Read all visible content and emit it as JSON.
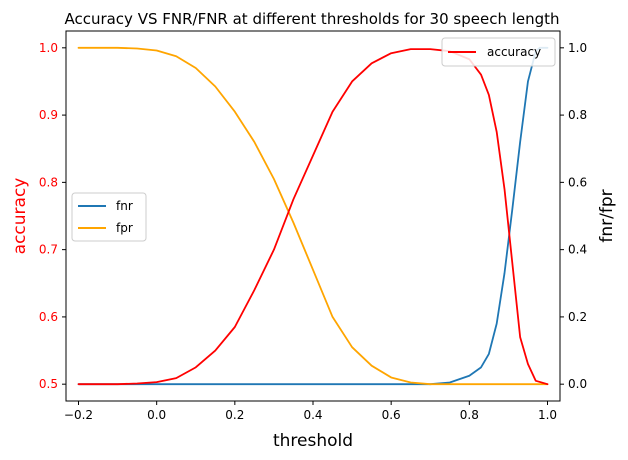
{
  "chart_data": {
    "type": "line",
    "title": "Accuracy VS FNR/FNR at different thresholds for 30 speech length",
    "xlabel": "threshold",
    "ylabel_left": "accuracy",
    "ylabel_right": "fnr/fpr",
    "xlim": [
      -0.232,
      1.032
    ],
    "ylim_left": [
      0.475,
      1.025
    ],
    "ylim_right": [
      -0.05,
      1.05
    ],
    "xticks": [
      -0.2,
      0.0,
      0.2,
      0.4,
      0.6,
      0.8,
      1.0
    ],
    "xtick_labels": [
      "−0.2",
      "0.0",
      "0.2",
      "0.4",
      "0.6",
      "0.8",
      "1.0"
    ],
    "yticks_left": [
      0.5,
      0.6,
      0.7,
      0.8,
      0.9,
      1.0
    ],
    "ytick_labels_left": [
      "0.5",
      "0.6",
      "0.7",
      "0.8",
      "0.9",
      "1.0"
    ],
    "yticks_right": [
      0.0,
      0.2,
      0.4,
      0.6,
      0.8,
      1.0
    ],
    "ytick_labels_right": [
      "0.0",
      "0.2",
      "0.4",
      "0.6",
      "0.8",
      "1.0"
    ],
    "grid": false,
    "legend_left": {
      "placement": "center-left",
      "entries": [
        "fnr",
        "fpr"
      ]
    },
    "legend_right": {
      "placement": "top-right",
      "entries": [
        "accuracy"
      ]
    },
    "colors": {
      "accuracy": "#ff0000",
      "fnr": "#1f77b4",
      "fpr": "#ffa500",
      "left_axis": "#ff0000"
    },
    "series": [
      {
        "name": "accuracy",
        "axis": "left",
        "points": [
          [
            -0.2,
            0.5
          ],
          [
            -0.1,
            0.5
          ],
          [
            -0.05,
            0.501
          ],
          [
            0.0,
            0.503
          ],
          [
            0.05,
            0.509
          ],
          [
            0.1,
            0.525
          ],
          [
            0.15,
            0.55
          ],
          [
            0.2,
            0.585
          ],
          [
            0.25,
            0.64
          ],
          [
            0.3,
            0.7
          ],
          [
            0.35,
            0.775
          ],
          [
            0.4,
            0.84
          ],
          [
            0.45,
            0.905
          ],
          [
            0.5,
            0.95
          ],
          [
            0.55,
            0.977
          ],
          [
            0.6,
            0.992
          ],
          [
            0.65,
            0.998
          ],
          [
            0.7,
            0.998
          ],
          [
            0.75,
            0.995
          ],
          [
            0.8,
            0.983
          ],
          [
            0.83,
            0.96
          ],
          [
            0.85,
            0.93
          ],
          [
            0.87,
            0.875
          ],
          [
            0.89,
            0.79
          ],
          [
            0.91,
            0.68
          ],
          [
            0.93,
            0.57
          ],
          [
            0.95,
            0.53
          ],
          [
            0.97,
            0.505
          ],
          [
            1.0,
            0.5
          ]
        ]
      },
      {
        "name": "fnr",
        "axis": "right",
        "points": [
          [
            -0.2,
            0.0
          ],
          [
            0.0,
            0.0
          ],
          [
            0.4,
            0.0
          ],
          [
            0.6,
            0.0
          ],
          [
            0.7,
            0.0
          ],
          [
            0.75,
            0.005
          ],
          [
            0.8,
            0.025
          ],
          [
            0.83,
            0.05
          ],
          [
            0.85,
            0.09
          ],
          [
            0.87,
            0.18
          ],
          [
            0.89,
            0.33
          ],
          [
            0.91,
            0.52
          ],
          [
            0.93,
            0.72
          ],
          [
            0.95,
            0.9
          ],
          [
            0.97,
            0.99
          ],
          [
            0.98,
            1.0
          ],
          [
            1.0,
            1.0
          ]
        ]
      },
      {
        "name": "fpr",
        "axis": "right",
        "points": [
          [
            -0.2,
            1.0
          ],
          [
            -0.1,
            1.0
          ],
          [
            -0.05,
            0.998
          ],
          [
            0.0,
            0.992
          ],
          [
            0.05,
            0.975
          ],
          [
            0.1,
            0.94
          ],
          [
            0.15,
            0.885
          ],
          [
            0.2,
            0.81
          ],
          [
            0.25,
            0.72
          ],
          [
            0.3,
            0.61
          ],
          [
            0.35,
            0.48
          ],
          [
            0.4,
            0.34
          ],
          [
            0.45,
            0.2
          ],
          [
            0.5,
            0.11
          ],
          [
            0.55,
            0.055
          ],
          [
            0.6,
            0.02
          ],
          [
            0.65,
            0.005
          ],
          [
            0.7,
            0.0
          ],
          [
            0.8,
            0.0
          ],
          [
            1.0,
            0.0
          ]
        ]
      }
    ]
  }
}
